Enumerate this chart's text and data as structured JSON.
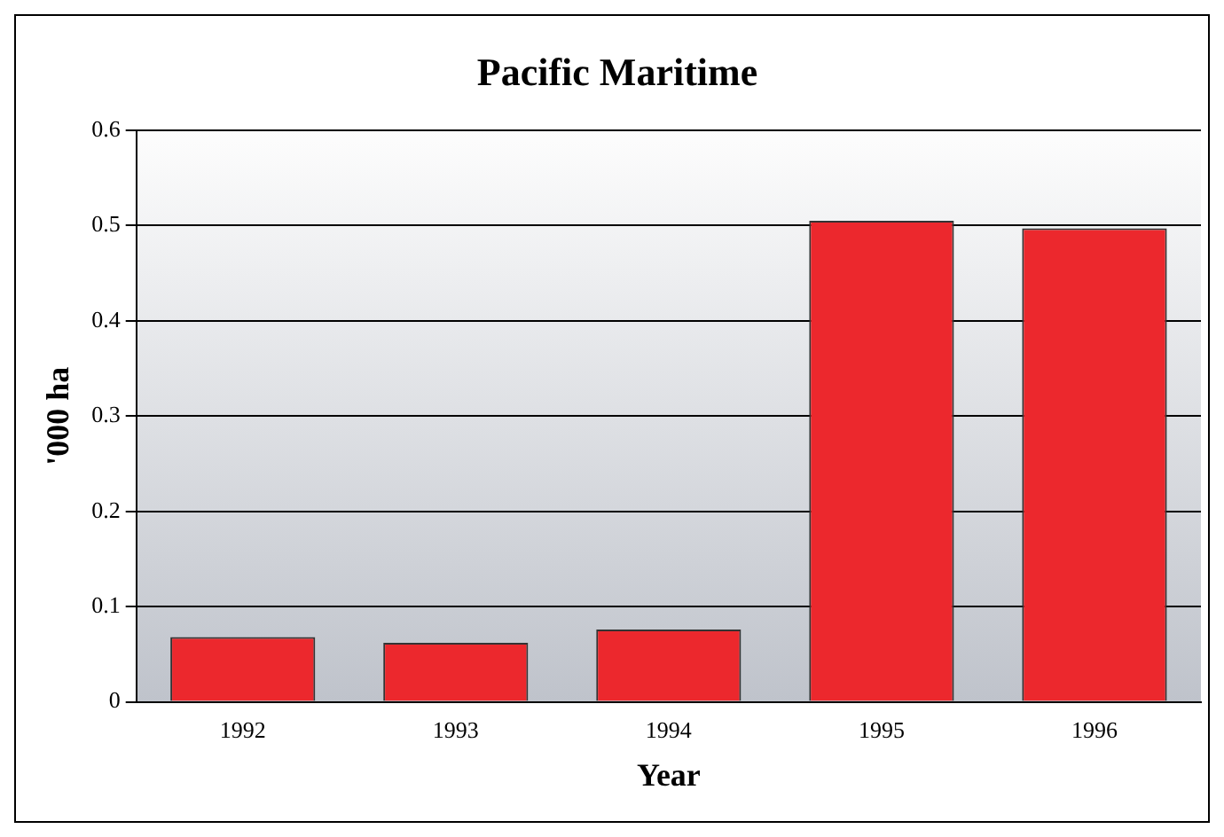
{
  "chart_data": {
    "type": "bar",
    "title": "Pacific Maritime",
    "xlabel": "Year",
    "ylabel": "'000 ha",
    "categories": [
      "1992",
      "1993",
      "1994",
      "1995",
      "1996"
    ],
    "values": [
      0.068,
      0.062,
      0.076,
      0.505,
      0.497
    ],
    "color": "#ec282d",
    "ylim": [
      0,
      0.6
    ],
    "yticks": [
      0,
      0.1,
      0.2,
      0.3,
      0.4,
      0.5,
      0.6
    ],
    "grid": "y",
    "legend": false
  }
}
